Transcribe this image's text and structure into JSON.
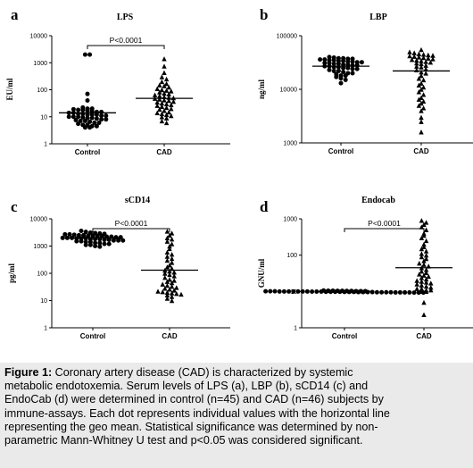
{
  "chart_data": [
    {
      "id": "a",
      "type": "scatter",
      "letter": "a",
      "title": "LPS",
      "ylabel": "EU/ml",
      "yscale": "log",
      "ylim": [
        1,
        10000
      ],
      "yticks": [
        "1",
        "10",
        "100",
        "1000",
        "10000"
      ],
      "categories": [
        "Control",
        "CAD"
      ],
      "markers": [
        "circle",
        "triangle"
      ],
      "geo_mean": [
        14,
        48
      ],
      "annotation": "P<0.0001",
      "series": [
        {
          "values": [
            2000,
            2000,
            70,
            40,
            22,
            20,
            20,
            19,
            18,
            18,
            17,
            16,
            15,
            15,
            14,
            14,
            13,
            13,
            12,
            12,
            12,
            11,
            11,
            10,
            10,
            10,
            9.5,
            9,
            9,
            8.5,
            8,
            8,
            7.5,
            7,
            7,
            6.5,
            6,
            6,
            5.5,
            5,
            5,
            4.5,
            4.5,
            4,
            4
          ]
        },
        {
          "values": [
            1400,
            750,
            430,
            300,
            250,
            200,
            170,
            150,
            140,
            125,
            110,
            100,
            95,
            90,
            82,
            75,
            70,
            65,
            60,
            55,
            52,
            50,
            48,
            45,
            42,
            40,
            37,
            35,
            32,
            30,
            28,
            26,
            24,
            22,
            20,
            19,
            17,
            15,
            14,
            13,
            12,
            11,
            10,
            9,
            7,
            6
          ]
        }
      ]
    },
    {
      "id": "b",
      "type": "scatter",
      "letter": "b",
      "title": "LBP",
      "ylabel": "ng/ml",
      "yscale": "log",
      "ylim": [
        1000,
        100000
      ],
      "yticks": [
        "1000",
        "10000",
        "100000"
      ],
      "categories": [
        "Control",
        "CAD"
      ],
      "markers": [
        "circle",
        "triangle"
      ],
      "geo_mean": [
        27000,
        22000
      ],
      "series": [
        {
          "values": [
            40000,
            39000,
            38000,
            38000,
            37000,
            37000,
            36000,
            36000,
            35000,
            35000,
            34000,
            34000,
            33000,
            33000,
            32000,
            32000,
            31000,
            31000,
            30000,
            30000,
            29000,
            29000,
            28000,
            28000,
            27000,
            27000,
            26000,
            26000,
            25000,
            25000,
            24000,
            24000,
            23000,
            22000,
            22000,
            21000,
            20000,
            20000,
            19000,
            18000,
            18000,
            17000,
            16000,
            15000,
            13000
          ]
        },
        {
          "values": [
            55000,
            50000,
            48000,
            46000,
            45000,
            44000,
            43000,
            42000,
            41000,
            40000,
            39000,
            38000,
            37000,
            36000,
            35000,
            34000,
            33000,
            32000,
            31000,
            30000,
            28000,
            27000,
            26000,
            24000,
            23000,
            21000,
            20000,
            18000,
            16000,
            15000,
            13000,
            12000,
            11000,
            10000,
            9000,
            8000,
            7000,
            6500,
            6000,
            5500,
            5000,
            4500,
            4000,
            3000,
            2500,
            1600
          ]
        }
      ]
    },
    {
      "id": "c",
      "type": "scatter",
      "letter": "c",
      "title": "sCD14",
      "ylabel": "pg/ml",
      "yscale": "log",
      "ylim": [
        1,
        10000
      ],
      "yticks": [
        "1",
        "10",
        "100",
        "1000",
        "10000"
      ],
      "categories": [
        "Control",
        "CAD"
      ],
      "markers": [
        "circle",
        "triangle"
      ],
      "geo_mean": [
        2000,
        130
      ],
      "annotation": "P<0.0001",
      "series": [
        {
          "values": [
            3600,
            3300,
            3100,
            3000,
            2900,
            2800,
            2700,
            2700,
            2600,
            2500,
            2500,
            2400,
            2400,
            2300,
            2300,
            2200,
            2200,
            2100,
            2100,
            2000,
            2000,
            2000,
            1900,
            1900,
            1900,
            1800,
            1800,
            1800,
            1700,
            1700,
            1600,
            1600,
            1600,
            1500,
            1500,
            1400,
            1400,
            1300,
            1300,
            1200,
            1200,
            1100,
            1100,
            1000,
            950
          ]
        },
        {
          "values": [
            3500,
            3000,
            2500,
            2000,
            1800,
            1500,
            1200,
            1000,
            800,
            600,
            500,
            420,
            350,
            300,
            250,
            200,
            170,
            150,
            130,
            120,
            110,
            100,
            90,
            80,
            70,
            60,
            55,
            50,
            45,
            40,
            36,
            33,
            30,
            28,
            26,
            24,
            22,
            21,
            20,
            19,
            18,
            17,
            16,
            14,
            12,
            10
          ]
        }
      ]
    },
    {
      "id": "d",
      "type": "scatter",
      "letter": "d",
      "title": "Endocab",
      "ylabel": "GNU/ml",
      "yscale": "log",
      "ylim": [
        1,
        1000
      ],
      "yticks": [
        "1",
        "10",
        "100",
        "1000"
      ],
      "categories": [
        "Control",
        "CAD"
      ],
      "markers": [
        "circle",
        "triangle"
      ],
      "geo_mean": [
        10,
        45
      ],
      "annotation": "P<0.0001",
      "series": [
        {
          "values": [
            10.6,
            10.5,
            10.5,
            10.4,
            10.4,
            10.3,
            10.3,
            10.2,
            10.2,
            10.2,
            10.1,
            10.1,
            10.1,
            10,
            10,
            10,
            10,
            10,
            10,
            10,
            9.9,
            9.9,
            9.9,
            9.8,
            9.8,
            9.8,
            9.8,
            9.7,
            9.7,
            9.7,
            9.6,
            9.6,
            9.6,
            9.6,
            9.5,
            9.5,
            9.5,
            9.5,
            9.4,
            9.4,
            9.4,
            9.4,
            9.3,
            9.3,
            9.3
          ]
        },
        {
          "values": [
            900,
            800,
            700,
            600,
            500,
            400,
            350,
            300,
            250,
            200,
            170,
            150,
            130,
            110,
            100,
            90,
            80,
            70,
            60,
            55,
            50,
            45,
            40,
            36,
            33,
            30,
            28,
            26,
            24,
            22,
            20,
            19,
            18,
            17,
            16,
            15,
            14,
            13,
            12,
            12,
            11,
            11,
            10,
            10,
            5,
            2.3
          ]
        }
      ]
    }
  ],
  "caption": {
    "label": "Figure 1:",
    "lines": [
      " Coronary artery disease (CAD) is characterized by systemic",
      "metabolic endotoxemia. Serum levels of LPS (a), LBP (b), sCD14 (c) and",
      "EndoCab (d) were determined in control (n=45) and CAD (n=46) subjects by",
      "immune-assays. Each dot represents individual values with the horizontal line",
      "representing the geo mean. Statistical significance was determined by non-",
      "parametric Mann-Whitney U test and p<0.05 was considered significant."
    ]
  }
}
